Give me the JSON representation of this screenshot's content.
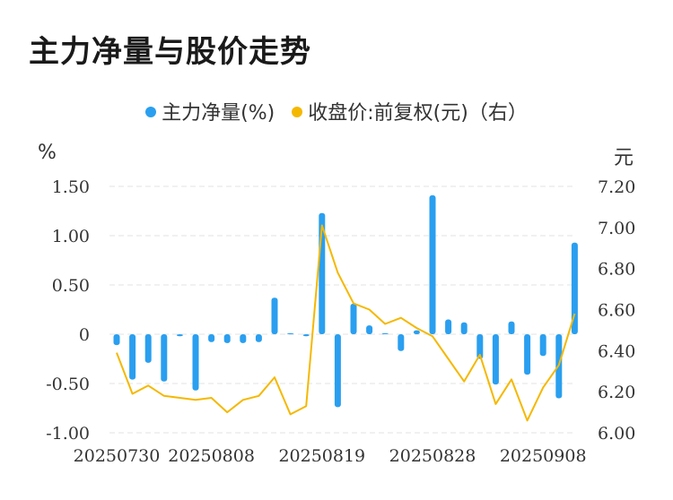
{
  "title": "主力净量与股价走势",
  "legend": {
    "series1": "主力净量(%)",
    "series2": "收盘价:前复权(元)（右）"
  },
  "colors": {
    "bar": "#2a9ff0",
    "line": "#f5b800",
    "grid": "#e3e3e3"
  },
  "chart_data": {
    "type": "bar",
    "title": "主力净量与股价走势",
    "y_left_label": "%",
    "y_right_label": "元",
    "y_left_ticks": [
      "1.50",
      "1.00",
      "0.50",
      "0",
      "-0.50",
      "-1.00"
    ],
    "y_right_ticks": [
      "7.20",
      "7.00",
      "6.80",
      "6.60",
      "6.40",
      "6.20",
      "6.00"
    ],
    "ylim_left": [
      -1.0,
      1.5
    ],
    "ylim_right": [
      6.0,
      7.2
    ],
    "x_tick_labels": [
      {
        "index": 0,
        "label": "20250730"
      },
      {
        "index": 6,
        "label": "20250808"
      },
      {
        "index": 13,
        "label": "20250819"
      },
      {
        "index": 20,
        "label": "20250828"
      },
      {
        "index": 27,
        "label": "20250908"
      }
    ],
    "grid": true,
    "series": [
      {
        "name": "主力净量(%)",
        "type": "bar",
        "axis": "left",
        "values": [
          -0.11,
          -0.46,
          -0.29,
          -0.48,
          -0.02,
          -0.57,
          -0.08,
          -0.09,
          -0.09,
          -0.08,
          0.37,
          0.01,
          -0.02,
          1.23,
          -0.74,
          0.31,
          0.09,
          0.01,
          -0.17,
          0.04,
          1.41,
          0.15,
          0.12,
          -0.25,
          -0.51,
          0.13,
          -0.41,
          -0.22,
          -0.65,
          0.93
        ]
      },
      {
        "name": "收盘价:前复权(元)（右）",
        "type": "line",
        "axis": "right",
        "values": [
          6.39,
          6.19,
          6.23,
          6.18,
          6.17,
          6.16,
          6.17,
          6.1,
          6.16,
          6.18,
          6.27,
          6.09,
          6.13,
          7.01,
          6.78,
          6.63,
          6.6,
          6.53,
          6.56,
          6.51,
          6.47,
          6.36,
          6.25,
          6.38,
          6.14,
          6.26,
          6.06,
          6.22,
          6.33,
          6.58
        ]
      }
    ]
  }
}
